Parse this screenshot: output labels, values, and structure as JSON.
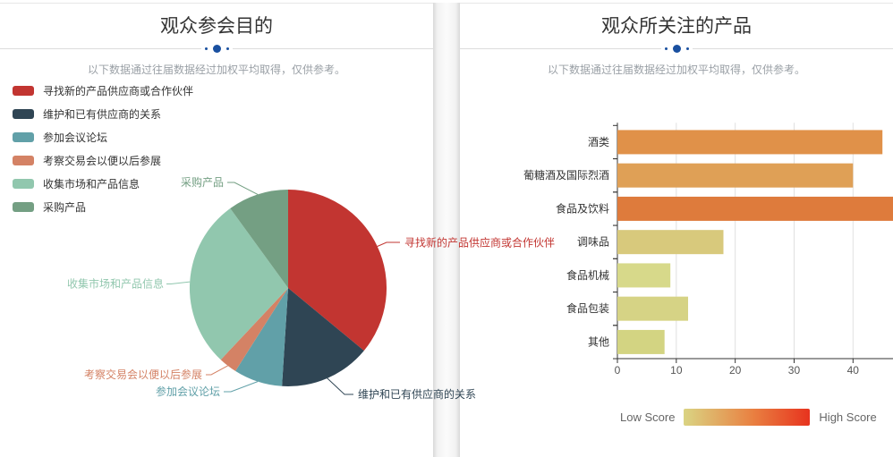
{
  "page": {
    "left_panel": {
      "title": "观众参会目的",
      "subtitle": "以下数据通过往届数据经过加权平均取得，仅供参考。"
    },
    "right_panel": {
      "title": "观众所关注的产品",
      "subtitle": "以下数据通过往届数据经过加权平均取得，仅供参考。"
    }
  },
  "colors": {
    "title_text": "#333333",
    "subtitle_text": "#9aa0a6",
    "divider_dots": "#1a50a0",
    "divider_line": "#dcdcdc",
    "axis_line": "#333333",
    "grid_line": "#e0e0e0",
    "tick_text": "#555555",
    "category_text": "#333333"
  },
  "chart_data": [
    {
      "type": "pie",
      "title": "观众参会目的",
      "legend_position": "top-left vertical",
      "labels": [
        "寻找新的产品供应商或合作伙伴",
        "维护和已有供应商的关系",
        "参加会议论坛",
        "考察交易会以便以后参展",
        "收集市场和产品信息",
        "采购产品"
      ],
      "values": [
        36,
        15,
        8,
        3,
        28,
        10
      ],
      "unit": "percent",
      "colors": [
        "#c23531",
        "#2f4554",
        "#61a0a8",
        "#d48265",
        "#91c7ae",
        "#749f83"
      ]
    },
    {
      "type": "bar",
      "title": "观众所关注的产品",
      "orientation": "horizontal",
      "categories": [
        "酒类",
        "葡糖酒及国际烈酒",
        "食品及饮料",
        "调味品",
        "食品机械",
        "食品包装",
        "其他"
      ],
      "values": [
        45,
        40,
        47,
        18,
        9,
        12,
        8
      ],
      "bar_colors": [
        "#e09149",
        "#dfa056",
        "#de7b3c",
        "#d8c97c",
        "#d7d98a",
        "#d6d385",
        "#d3d482"
      ],
      "xlabel": "",
      "ylabel": "",
      "xlim": [
        0,
        47
      ],
      "x_ticks": [
        0,
        10,
        20,
        30,
        40
      ],
      "grid": true,
      "visual_map": {
        "low_label": "Low Score",
        "high_label": "High Score",
        "low_color": "#dad483",
        "mid_color": "#e98041",
        "high_color": "#e7331e"
      }
    }
  ]
}
